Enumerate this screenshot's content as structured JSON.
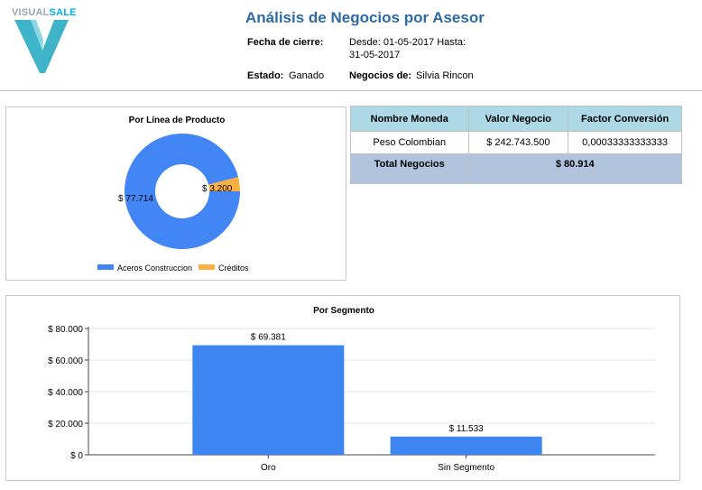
{
  "logo": {
    "text_plain": "VISUAL",
    "text_accent": "SALE",
    "accent_color": "#00aeef",
    "mark_color": "#3fb3c8"
  },
  "header": {
    "title": "Análisis de Negocios por Asesor",
    "fecha_label": "Fecha de cierre:",
    "fecha_value_line1": "Desde: 01-05-2017 Hasta:",
    "fecha_value_line2": "31-05-2017",
    "estado_label": "Estado:",
    "estado_value": "Ganado",
    "negocios_label": "Negocios de:",
    "negocios_value": "Silvia Rincon"
  },
  "currency_table": {
    "columns": [
      "Nombre Moneda",
      "Valor  Negocio",
      "Factor Conversión"
    ],
    "rows": [
      [
        "Peso Colombian",
        "$ 242.743.500",
        "0,00033333333333"
      ]
    ],
    "total_label": "Total  Negocios",
    "total_value": "$ 80.914",
    "header_color": "#add8e6",
    "total_color": "#b0c4de"
  },
  "chart_data": [
    {
      "type": "pie",
      "title": "Por Línea de Producto",
      "legend_position": "bottom",
      "labels": [
        "Aceros Construccion",
        "Créditos"
      ],
      "values": [
        77714,
        3200
      ],
      "value_labels": [
        "$ 77.714",
        "$ 3.200"
      ],
      "colors": [
        "#4285f4",
        "#fbb040"
      ]
    },
    {
      "type": "bar",
      "title": "Por Segmento",
      "categories": [
        "Oro",
        "Sin Segmento"
      ],
      "values": [
        69381,
        11533
      ],
      "value_labels": [
        "$ 69.381",
        "$ 11.533"
      ],
      "ylim": [
        0,
        80000
      ],
      "yticks": [
        0,
        20000,
        40000,
        60000,
        80000
      ],
      "ytick_labels": [
        "$ 0",
        "$ 20.000",
        "$ 40.000",
        "$ 60.000",
        "$ 80.000"
      ],
      "grid": true,
      "color": "#3d85f0"
    }
  ]
}
